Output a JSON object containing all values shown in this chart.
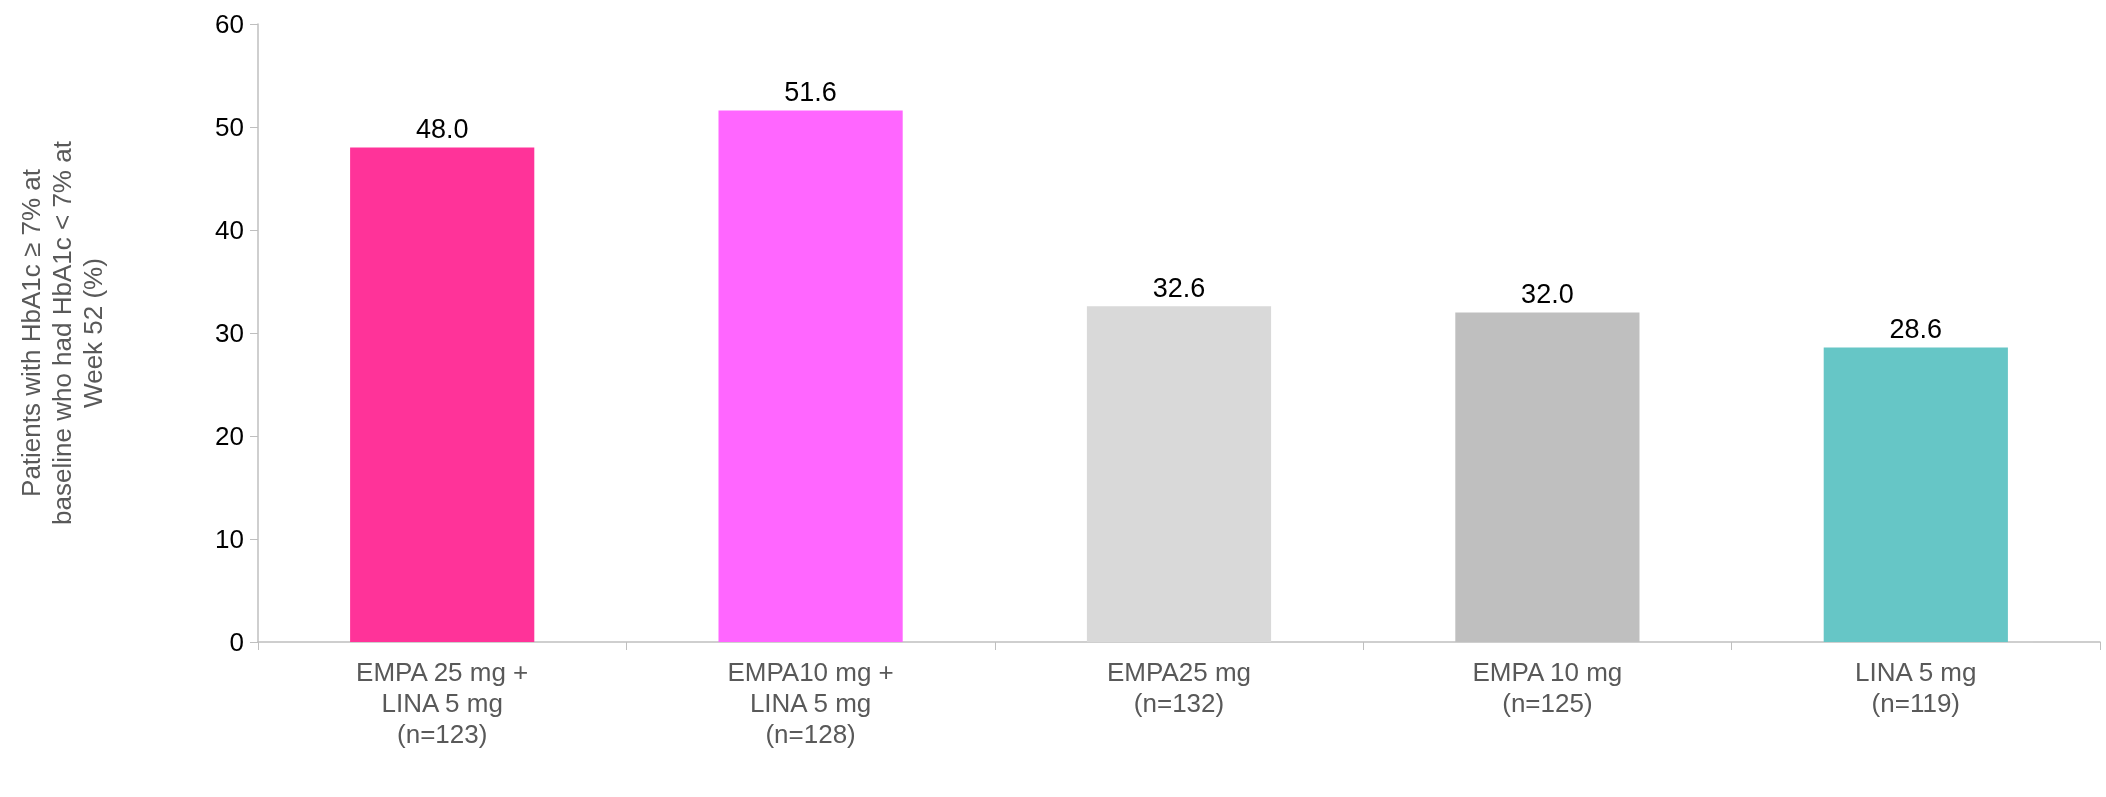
{
  "chart_data": {
    "type": "bar",
    "ylabel": "Patients with HbA1c ≥ 7% at baseline who had HbA1c < 7% at Week 52 (%)",
    "categories": [
      "EMPA 25 mg +\nLINA 5 mg\n(n=123)",
      "EMPA10 mg +\nLINA 5 mg\n(n=128)",
      "EMPA25 mg\n(n=132)",
      "EMPA 10 mg\n(n=125)",
      "LINA 5 mg\n(n=119)"
    ],
    "values": [
      48.0,
      51.6,
      32.6,
      32.0,
      28.6
    ],
    "colors": [
      "#ff3399",
      "#ff66ff",
      "#d9d9d9",
      "#bfbfbf",
      "#66c6c6"
    ],
    "value_labels": [
      "48.0",
      "51.6",
      "32.6",
      "32.0",
      "28.6"
    ],
    "ylim": [
      0,
      60
    ],
    "yticks": [
      0,
      10,
      20,
      30,
      40,
      50,
      60
    ],
    "grid": false
  }
}
